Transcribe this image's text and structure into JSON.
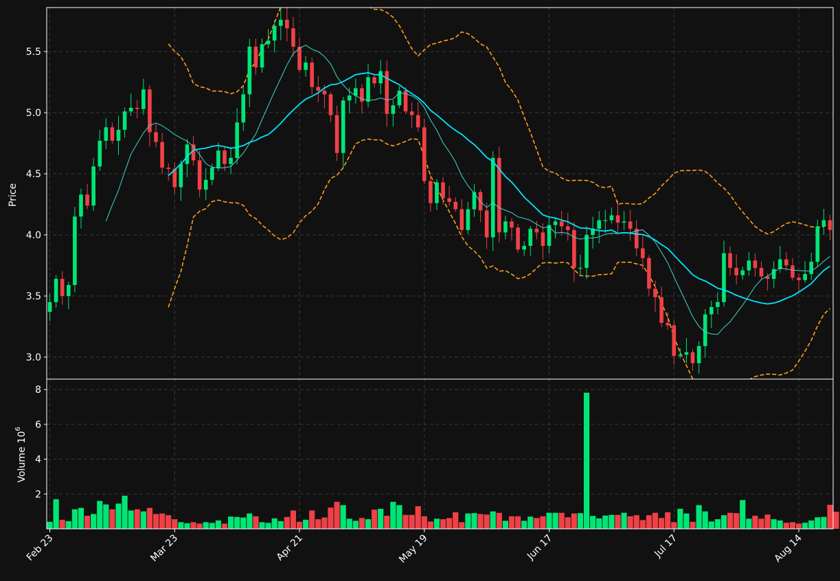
{
  "chart_data": {
    "type": "candlestick",
    "title": "",
    "panels": {
      "price": {
        "ylabel": "Price",
        "ylim": [
          2.82,
          5.86
        ],
        "yticks": [
          "3.0",
          "3.5",
          "4.0",
          "4.5",
          "5.0",
          "5.5"
        ],
        "ytick_values": [
          3.0,
          3.5,
          4.0,
          4.5,
          5.0,
          5.5
        ]
      },
      "volume": {
        "ylabel": "Volume",
        "ylabel_exponent": "10",
        "ylabel_exponent_power": "6",
        "ylim": [
          0,
          8.6
        ],
        "yticks": [
          "2",
          "4",
          "6",
          "8"
        ],
        "ytick_values": [
          2,
          4,
          6,
          8
        ]
      }
    },
    "x_ticks": [
      {
        "label": "Feb 23",
        "index": 0
      },
      {
        "label": "Mar 23",
        "index": 20
      },
      {
        "label": "Apr 21",
        "index": 40
      },
      {
        "label": "May 19",
        "index": 60
      },
      {
        "label": "Jun 17",
        "index": 80
      },
      {
        "label": "Jul 17",
        "index": 100
      },
      {
        "label": "Aug 14",
        "index": 120
      }
    ],
    "grid": true,
    "colors": {
      "background": "#111111",
      "up": "#00e676",
      "down": "#ef4146",
      "ma_fast": "#3fd9cf",
      "ma_slow": "#00e5ff",
      "bands": "#ff9f1a",
      "grid": "#3a3a3a",
      "frame": "#ffffff"
    },
    "closes": [
      3.45,
      3.64,
      3.5,
      3.59,
      4.15,
      4.33,
      4.24,
      4.56,
      4.77,
      4.88,
      4.77,
      4.86,
      5.01,
      5.04,
      5.03,
      5.19,
      4.84,
      4.76,
      4.55,
      4.54,
      4.39,
      4.58,
      4.74,
      4.61,
      4.37,
      4.45,
      4.55,
      4.69,
      4.58,
      4.63,
      4.92,
      5.15,
      5.54,
      5.37,
      5.56,
      5.59,
      5.71,
      5.76,
      5.69,
      5.54,
      5.35,
      5.41,
      5.21,
      5.18,
      5.15,
      4.98,
      4.67,
      5.1,
      5.14,
      5.2,
      5.09,
      5.29,
      5.24,
      5.34,
      4.99,
      5.06,
      5.18,
      5.01,
      4.98,
      4.88,
      4.44,
      4.26,
      4.43,
      4.3,
      4.27,
      4.21,
      4.04,
      4.21,
      4.35,
      4.2,
      3.98,
      4.63,
      4.02,
      4.11,
      4.06,
      3.88,
      3.91,
      4.05,
      4.02,
      3.91,
      4.08,
      4.11,
      4.07,
      4.04,
      3.73,
      3.73,
      4.0,
      4.05,
      4.12,
      4.12,
      4.16,
      4.1,
      4.11,
      4.05,
      3.89,
      3.81,
      3.56,
      3.49,
      3.28,
      3.26,
      3.01,
      3.02,
      3.04,
      2.95,
      3.09,
      3.35,
      3.41,
      3.45,
      3.85,
      3.73,
      3.67,
      3.71,
      3.79,
      3.73,
      3.66,
      3.64,
      3.72,
      3.8,
      3.75,
      3.65,
      3.63,
      3.68,
      3.78,
      4.07,
      4.12,
      4.04
    ],
    "volumes": [
      0.4,
      1.7,
      0.52,
      0.44,
      1.12,
      1.2,
      0.75,
      0.85,
      1.6,
      1.4,
      1.12,
      1.45,
      1.9,
      1.05,
      1.12,
      1.0,
      1.2,
      0.85,
      0.88,
      0.78,
      0.55,
      0.38,
      0.32,
      0.38,
      0.3,
      0.38,
      0.34,
      0.48,
      0.3,
      0.7,
      0.68,
      0.65,
      0.88,
      0.72,
      0.38,
      0.34,
      0.6,
      0.44,
      0.68,
      1.05,
      0.4,
      0.52,
      1.05,
      0.55,
      0.65,
      1.22,
      1.55,
      1.36,
      0.58,
      0.46,
      0.62,
      0.55,
      1.1,
      1.15,
      0.75,
      1.55,
      1.36,
      0.8,
      0.8,
      1.3,
      0.72,
      0.42,
      0.58,
      0.55,
      0.62,
      0.95,
      0.38,
      0.88,
      0.9,
      0.85,
      0.82,
      1.0,
      0.92,
      0.46,
      0.72,
      0.72,
      0.46,
      0.7,
      0.62,
      0.72,
      0.92,
      0.92,
      0.92,
      0.66,
      0.88,
      0.9,
      7.82,
      0.74,
      0.6,
      0.76,
      0.8,
      0.8,
      0.92,
      0.72,
      0.78,
      0.5,
      0.78,
      0.92,
      0.62,
      0.95,
      0.38,
      1.15,
      0.88,
      0.4,
      1.36,
      1.0,
      0.42,
      0.55,
      0.78,
      0.92,
      0.9,
      1.65,
      0.58,
      0.75,
      0.58,
      0.82,
      0.55,
      0.48,
      0.35,
      0.38,
      0.3,
      0.35,
      0.48,
      0.66,
      0.68,
      1.38,
      0.98
    ]
  }
}
